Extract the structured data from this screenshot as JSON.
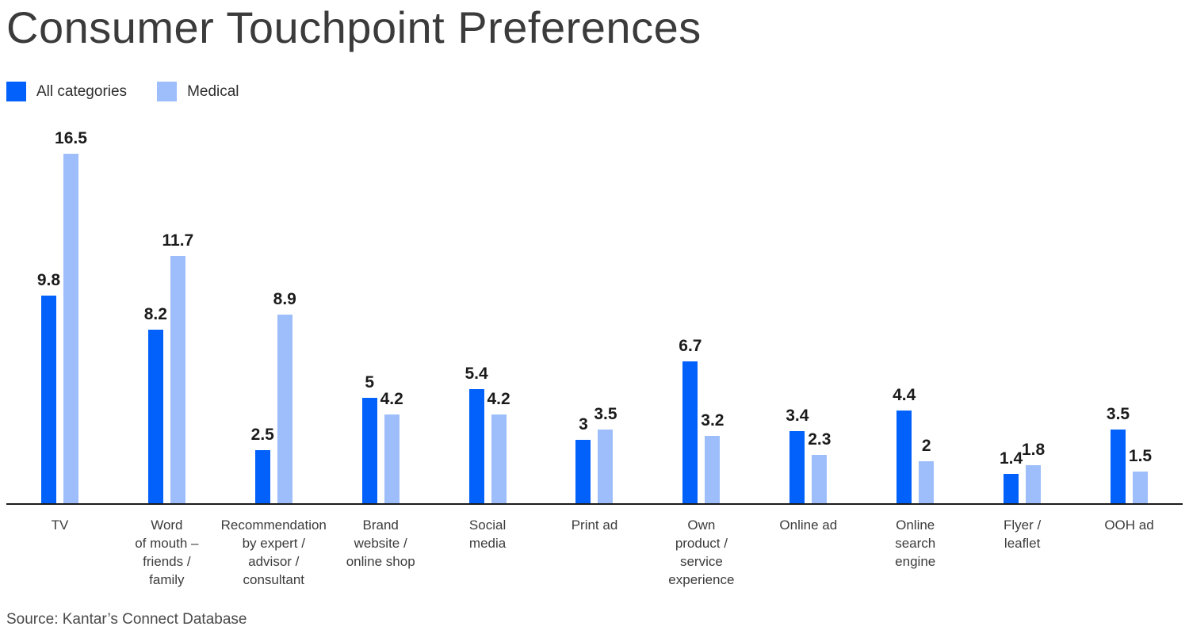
{
  "title": "Consumer Touchpoint Preferences",
  "source": "Source: Kantar’s Connect Database",
  "legend": [
    {
      "label": "All categories",
      "color": "#0261fa"
    },
    {
      "label": "Medical",
      "color": "#9dbefa"
    }
  ],
  "chart_data": {
    "type": "bar",
    "title": "Consumer Touchpoint Preferences",
    "categories": [
      "TV",
      "Word of mouth – friends / family",
      "Recommendation by expert / advisor / consultant",
      "Brand website / online shop",
      "Social media",
      "Print ad",
      "Own product / service experience",
      "Online ad",
      "Online search engine",
      "Flyer / leaflet",
      "OOH ad"
    ],
    "category_label_lines": [
      [
        "TV"
      ],
      [
        "Word",
        "of mouth –",
        "friends /",
        "family"
      ],
      [
        "Recommendation",
        "by expert /",
        "advisor /",
        "consultant"
      ],
      [
        "Brand",
        "website /",
        "online shop"
      ],
      [
        "Social",
        "media"
      ],
      [
        "Print ad"
      ],
      [
        "Own",
        "product /",
        "service",
        "experience"
      ],
      [
        "Online ad"
      ],
      [
        "Online",
        "search",
        "engine"
      ],
      [
        "Flyer /",
        "leaflet"
      ],
      [
        "OOH ad"
      ]
    ],
    "series": [
      {
        "name": "All categories",
        "color": "#0261fa",
        "values": [
          9.8,
          8.2,
          2.5,
          5,
          5.4,
          3,
          6.7,
          3.4,
          4.4,
          1.4,
          3.5
        ]
      },
      {
        "name": "Medical",
        "color": "#9dbefa",
        "values": [
          16.5,
          11.7,
          8.9,
          4.2,
          4.2,
          3.5,
          3.2,
          2.3,
          2,
          1.8,
          1.5
        ]
      }
    ],
    "ylim": [
      0,
      18
    ],
    "xlabel": "",
    "ylabel": "",
    "grid": false,
    "value_labels": true,
    "legend_position": "top-left"
  }
}
